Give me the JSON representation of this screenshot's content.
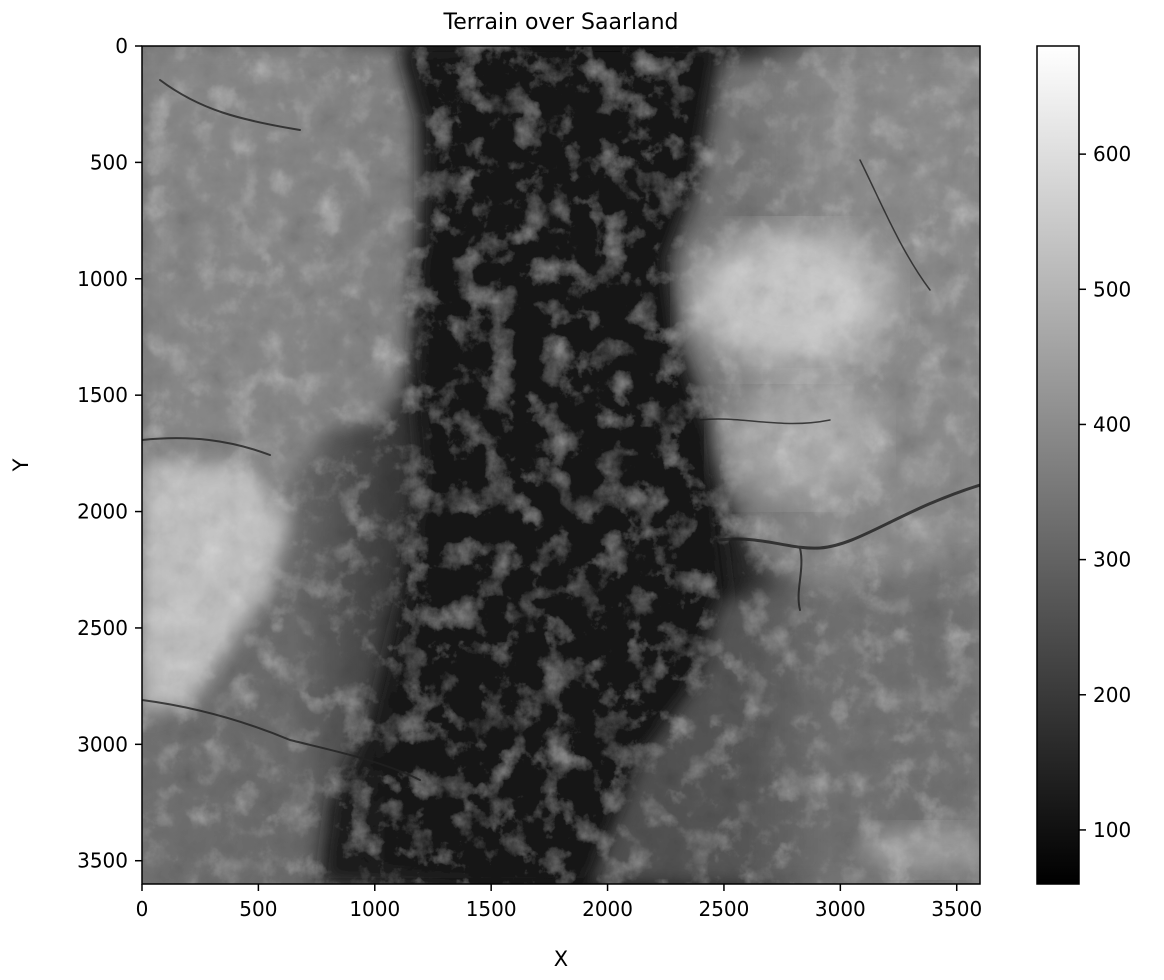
{
  "chart_data": {
    "type": "heatmap",
    "title": "Terrain over Saarland",
    "xlabel": "X",
    "ylabel": "Y",
    "xlim": [
      0,
      3600
    ],
    "ylim": [
      3600,
      0
    ],
    "x_ticks": [
      0,
      500,
      1000,
      1500,
      2000,
      2500,
      3000,
      3500
    ],
    "y_ticks": [
      0,
      500,
      1000,
      1500,
      2000,
      2500,
      3000,
      3500
    ],
    "colormap": "gray",
    "colorbar": {
      "vmin": 60,
      "vmax": 680,
      "ticks": [
        100,
        200,
        300,
        400,
        500,
        600
      ]
    },
    "regions": [
      {
        "description": "central low valley",
        "approx_elevation": 90
      },
      {
        "description": "western uplands",
        "approx_elevation": 380
      },
      {
        "description": "eastern uplands",
        "approx_elevation": 420
      },
      {
        "description": "south-west high ridges",
        "approx_elevation": 580
      },
      {
        "description": "north-east high peaks",
        "approx_elevation": 600
      }
    ]
  }
}
